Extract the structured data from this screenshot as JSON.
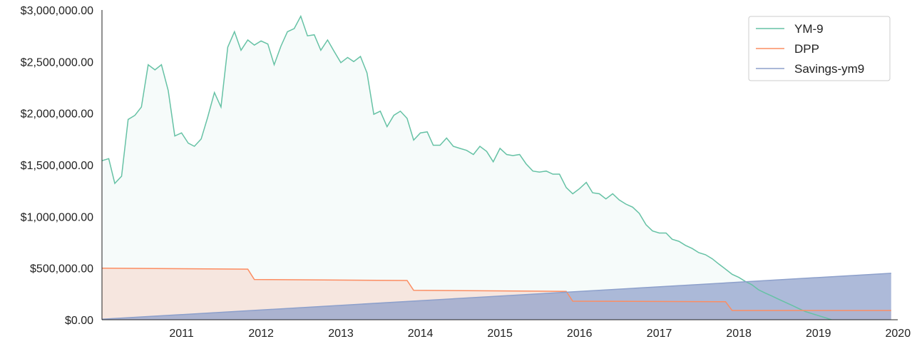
{
  "chart_data": {
    "type": "area",
    "title": "",
    "xlabel": "",
    "ylabel": "",
    "x_ticks": [
      "2011",
      "2012",
      "2013",
      "2014",
      "2015",
      "2016",
      "2017",
      "2018",
      "2019",
      "2020"
    ],
    "xlim": [
      "2010-01-01",
      "2019-12-31"
    ],
    "y_ticks": [
      "$0.00",
      "$500,000.00",
      "$1,000,000.00",
      "$1,500,000.00",
      "$2,000,000.00",
      "$2,500,000.00",
      "$3,000,000.00"
    ],
    "ylim": [
      0,
      3000000
    ],
    "legend": {
      "position": "top-right"
    },
    "series": [
      {
        "name": "YM-9",
        "color": "#66c2a5",
        "fill": "#66c2a5",
        "points": [
          [
            "2010-01-01",
            1540000
          ],
          [
            "2010-02-01",
            1560000
          ],
          [
            "2010-03-01",
            1320000
          ],
          [
            "2010-04-01",
            1390000
          ],
          [
            "2010-05-01",
            1940000
          ],
          [
            "2010-06-01",
            1980000
          ],
          [
            "2010-07-01",
            2060000
          ],
          [
            "2010-08-01",
            2470000
          ],
          [
            "2010-09-01",
            2420000
          ],
          [
            "2010-10-01",
            2470000
          ],
          [
            "2010-11-01",
            2220000
          ],
          [
            "2010-12-01",
            1780000
          ],
          [
            "2011-01-01",
            1810000
          ],
          [
            "2011-02-01",
            1710000
          ],
          [
            "2011-03-01",
            1680000
          ],
          [
            "2011-04-01",
            1750000
          ],
          [
            "2011-05-01",
            1960000
          ],
          [
            "2011-06-01",
            2200000
          ],
          [
            "2011-07-01",
            2060000
          ],
          [
            "2011-08-01",
            2640000
          ],
          [
            "2011-09-01",
            2790000
          ],
          [
            "2011-10-01",
            2610000
          ],
          [
            "2011-11-01",
            2710000
          ],
          [
            "2011-12-01",
            2660000
          ],
          [
            "2012-01-01",
            2700000
          ],
          [
            "2012-02-01",
            2670000
          ],
          [
            "2012-03-01",
            2470000
          ],
          [
            "2012-04-01",
            2650000
          ],
          [
            "2012-05-01",
            2790000
          ],
          [
            "2012-06-01",
            2820000
          ],
          [
            "2012-07-01",
            2940000
          ],
          [
            "2012-08-01",
            2750000
          ],
          [
            "2012-09-01",
            2760000
          ],
          [
            "2012-10-01",
            2610000
          ],
          [
            "2012-11-01",
            2710000
          ],
          [
            "2012-12-01",
            2600000
          ],
          [
            "2013-01-01",
            2490000
          ],
          [
            "2013-02-01",
            2540000
          ],
          [
            "2013-03-01",
            2500000
          ],
          [
            "2013-04-01",
            2550000
          ],
          [
            "2013-05-01",
            2390000
          ],
          [
            "2013-06-01",
            1990000
          ],
          [
            "2013-07-01",
            2020000
          ],
          [
            "2013-08-01",
            1870000
          ],
          [
            "2013-09-01",
            1980000
          ],
          [
            "2013-10-01",
            2020000
          ],
          [
            "2013-11-01",
            1950000
          ],
          [
            "2013-12-01",
            1740000
          ],
          [
            "2014-01-01",
            1810000
          ],
          [
            "2014-02-01",
            1820000
          ],
          [
            "2014-03-01",
            1690000
          ],
          [
            "2014-04-01",
            1690000
          ],
          [
            "2014-05-01",
            1760000
          ],
          [
            "2014-06-01",
            1680000
          ],
          [
            "2014-07-01",
            1660000
          ],
          [
            "2014-08-01",
            1640000
          ],
          [
            "2014-09-01",
            1600000
          ],
          [
            "2014-10-01",
            1680000
          ],
          [
            "2014-11-01",
            1630000
          ],
          [
            "2014-12-01",
            1530000
          ],
          [
            "2015-01-01",
            1660000
          ],
          [
            "2015-02-01",
            1600000
          ],
          [
            "2015-03-01",
            1590000
          ],
          [
            "2015-04-01",
            1600000
          ],
          [
            "2015-05-01",
            1510000
          ],
          [
            "2015-06-01",
            1440000
          ],
          [
            "2015-07-01",
            1430000
          ],
          [
            "2015-08-01",
            1440000
          ],
          [
            "2015-09-01",
            1410000
          ],
          [
            "2015-10-01",
            1410000
          ],
          [
            "2015-11-01",
            1280000
          ],
          [
            "2015-12-01",
            1220000
          ],
          [
            "2016-01-01",
            1270000
          ],
          [
            "2016-02-01",
            1330000
          ],
          [
            "2016-03-01",
            1230000
          ],
          [
            "2016-04-01",
            1220000
          ],
          [
            "2016-05-01",
            1170000
          ],
          [
            "2016-06-01",
            1220000
          ],
          [
            "2016-07-01",
            1160000
          ],
          [
            "2016-08-01",
            1120000
          ],
          [
            "2016-09-01",
            1090000
          ],
          [
            "2016-10-01",
            1030000
          ],
          [
            "2016-11-01",
            920000
          ],
          [
            "2016-12-01",
            860000
          ],
          [
            "2017-01-01",
            840000
          ],
          [
            "2017-02-01",
            840000
          ],
          [
            "2017-03-01",
            780000
          ],
          [
            "2017-04-01",
            760000
          ],
          [
            "2017-05-01",
            720000
          ],
          [
            "2017-06-01",
            690000
          ],
          [
            "2017-07-01",
            650000
          ],
          [
            "2017-08-01",
            630000
          ],
          [
            "2017-09-01",
            590000
          ],
          [
            "2017-10-01",
            540000
          ],
          [
            "2017-11-01",
            490000
          ],
          [
            "2017-12-01",
            440000
          ],
          [
            "2018-01-01",
            410000
          ],
          [
            "2018-02-01",
            370000
          ],
          [
            "2018-03-01",
            340000
          ],
          [
            "2018-04-01",
            290000
          ],
          [
            "2018-05-01",
            260000
          ],
          [
            "2018-06-01",
            230000
          ],
          [
            "2018-07-01",
            200000
          ],
          [
            "2018-08-01",
            170000
          ],
          [
            "2018-09-01",
            140000
          ],
          [
            "2018-10-01",
            110000
          ],
          [
            "2018-11-01",
            80000
          ],
          [
            "2018-12-01",
            60000
          ],
          [
            "2019-01-01",
            40000
          ],
          [
            "2019-02-01",
            20000
          ],
          [
            "2019-03-01",
            0
          ],
          [
            "2019-04-01",
            -20000
          ],
          [
            "2019-05-01",
            -40000
          ],
          [
            "2019-06-01",
            -60000
          ],
          [
            "2019-07-01",
            -80000
          ],
          [
            "2019-08-01",
            -100000
          ],
          [
            "2019-09-01",
            -120000
          ],
          [
            "2019-10-01",
            -140000
          ],
          [
            "2019-11-01",
            -160000
          ],
          [
            "2019-12-01",
            -180000
          ]
        ]
      },
      {
        "name": "DPP",
        "color": "#fc8d62",
        "fill": "#fc8d62",
        "points": [
          [
            "2010-01-01",
            500000
          ],
          [
            "2011-11-01",
            490000
          ],
          [
            "2011-12-01",
            390000
          ],
          [
            "2013-11-01",
            380000
          ],
          [
            "2013-12-01",
            285000
          ],
          [
            "2015-11-01",
            275000
          ],
          [
            "2015-12-01",
            180000
          ],
          [
            "2017-11-01",
            175000
          ],
          [
            "2017-12-01",
            90000
          ],
          [
            "2019-12-01",
            90000
          ]
        ]
      },
      {
        "name": "Savings-ym9",
        "color": "#8da0cb",
        "fill": "#8da0cb",
        "points": [
          [
            "2010-01-01",
            5000
          ],
          [
            "2019-12-01",
            450000
          ]
        ]
      }
    ]
  }
}
